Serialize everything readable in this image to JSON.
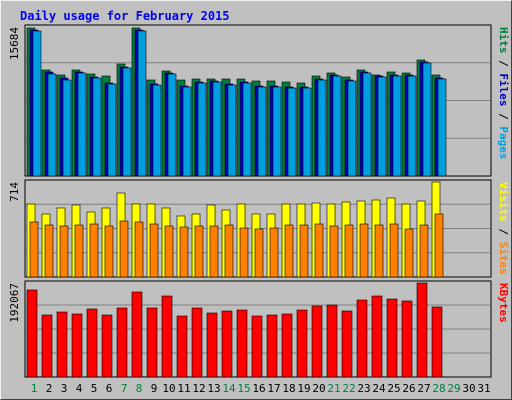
{
  "chart_data": {
    "title": "Daily usage for February 2015",
    "days": [
      "1",
      "2",
      "3",
      "4",
      "5",
      "6",
      "7",
      "8",
      "9",
      "10",
      "11",
      "12",
      "13",
      "14",
      "15",
      "16",
      "17",
      "18",
      "19",
      "20",
      "21",
      "22",
      "23",
      "24",
      "25",
      "26",
      "27",
      "28",
      "29",
      "30",
      "31"
    ],
    "weekend_days": [
      "1",
      "7",
      "8",
      "14",
      "15",
      "21",
      "22",
      "28",
      "29"
    ],
    "panels": [
      {
        "type": "bar",
        "label_parts": [
          "Pages",
          "Files",
          "Hits"
        ],
        "label_colors": [
          "#00a0e0",
          "#0000c0",
          "#008040"
        ],
        "max_label": "15684",
        "ylim": [
          0,
          15684
        ],
        "series": [
          {
            "name": "Hits",
            "color": "#008040",
            "values": [
              15600,
              11200,
              10600,
              11200,
              10700,
              10500,
              11800,
              15600,
              10100,
              11100,
              10100,
              10200,
              10200,
              10200,
              10200,
              10000,
              10000,
              9900,
              9800,
              10500,
              10800,
              10400,
              11200,
              10600,
              10900,
              10800,
              12200,
              10600
            ]
          },
          {
            "name": "Files",
            "color": "#0000c0",
            "values": [
              15400,
              10900,
              10300,
              10900,
              10400,
              9800,
              11500,
              15400,
              9700,
              10800,
              9500,
              9900,
              10000,
              9700,
              9900,
              9500,
              9500,
              9400,
              9400,
              10200,
              10600,
              10100,
              10900,
              10500,
              10600,
              10600,
              12000,
              10300
            ]
          },
          {
            "name": "Pages",
            "color": "#00a0e0",
            "values": [
              15300,
              10700,
              10100,
              10800,
              10300,
              9700,
              11400,
              15300,
              9600,
              10700,
              9400,
              9800,
              9900,
              9600,
              9800,
              9400,
              9400,
              9300,
              9300,
              10100,
              10500,
              10000,
              10800,
              10400,
              10500,
              10500,
              11900,
              10200
            ]
          }
        ]
      },
      {
        "type": "bar",
        "label_parts": [
          "Sites",
          "Visits"
        ],
        "label_colors": [
          "#ff8000",
          "#ffff00"
        ],
        "max_label": "714",
        "ylim": [
          0,
          714
        ],
        "series": [
          {
            "name": "Visits",
            "color": "#ffff00",
            "values": [
              550,
              470,
              520,
              540,
              490,
              520,
              630,
              550,
              550,
              515,
              460,
              470,
              540,
              500,
              550,
              470,
              470,
              550,
              550,
              555,
              550,
              560,
              570,
              580,
              590,
              550,
              570,
              720
            ]
          },
          {
            "name": "Sites",
            "color": "#ff8000",
            "values": [
              410,
              390,
              380,
              390,
              400,
              385,
              420,
              410,
              400,
              385,
              375,
              380,
              385,
              390,
              370,
              360,
              365,
              390,
              390,
              400,
              380,
              390,
              400,
              390,
              400,
              360,
              390,
              470
            ]
          }
        ]
      },
      {
        "type": "bar",
        "label_parts": [
          "KBytes"
        ],
        "label_colors": [
          "#ff0000"
        ],
        "max_label": "192067",
        "ylim": [
          0,
          192067
        ],
        "series": [
          {
            "name": "KBytes",
            "color": "#ff0000",
            "values": [
              178000,
              126000,
              132000,
              129000,
              138000,
              127000,
              140000,
              173000,
              140000,
              165000,
              125000,
              140000,
              130000,
              135000,
              137000,
              125000,
              127000,
              129000,
              136000,
              145000,
              147000,
              135000,
              158000,
              165000,
              160000,
              155000,
              200000,
              143000
            ]
          }
        ]
      }
    ]
  }
}
